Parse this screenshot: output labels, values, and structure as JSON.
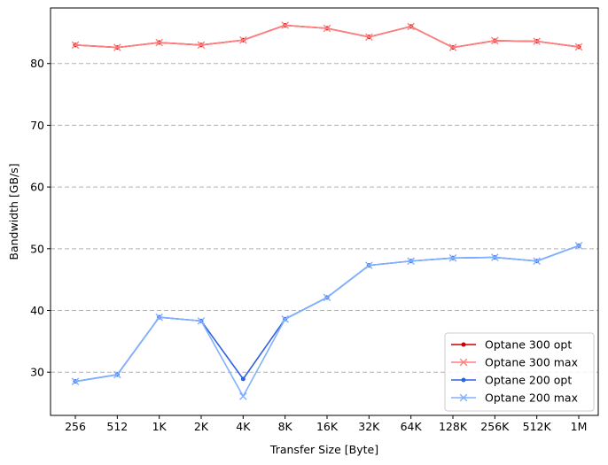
{
  "chart_data": {
    "type": "line",
    "title": "",
    "xlabel": "Transfer Size [Byte]",
    "ylabel": "Bandwidth [GB/s]",
    "categories": [
      "256",
      "512",
      "1K",
      "2K",
      "4K",
      "8K",
      "16K",
      "32K",
      "64K",
      "128K",
      "256K",
      "512K",
      "1M"
    ],
    "ylim": [
      23,
      89
    ],
    "yticks": [
      30,
      40,
      50,
      60,
      70,
      80
    ],
    "grid": "y-dashed",
    "legend_position": "lower-right",
    "series": [
      {
        "name": "Optane 300 opt",
        "color": "#cc0000",
        "marker": "dot",
        "values": [
          83.0,
          82.6,
          83.4,
          83.0,
          83.8,
          86.2,
          85.7,
          84.3,
          86.0,
          82.6,
          83.7,
          83.6,
          82.7
        ]
      },
      {
        "name": "Optane 300 max",
        "color": "#ff7f7f",
        "marker": "x",
        "values": [
          83.0,
          82.6,
          83.4,
          83.0,
          83.8,
          86.2,
          85.7,
          84.3,
          86.0,
          82.6,
          83.7,
          83.6,
          82.7
        ]
      },
      {
        "name": "Optane 200 opt",
        "color": "#2f62e0",
        "marker": "dot",
        "values": [
          28.5,
          29.6,
          38.9,
          38.3,
          28.9,
          38.6,
          42.1,
          47.3,
          48.0,
          48.5,
          48.6,
          48.0,
          50.5
        ]
      },
      {
        "name": "Optane 200 max",
        "color": "#80b0ff",
        "marker": "x",
        "values": [
          28.5,
          29.6,
          38.9,
          38.3,
          26.1,
          38.6,
          42.1,
          47.3,
          48.0,
          48.5,
          48.6,
          48.0,
          50.5
        ]
      }
    ]
  }
}
